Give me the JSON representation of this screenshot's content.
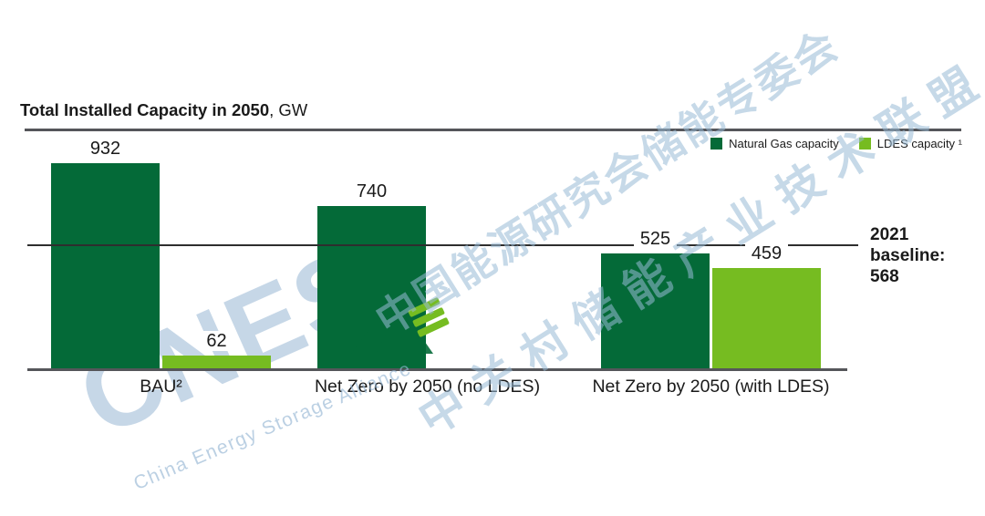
{
  "title": {
    "main": "Total Installed Capacity in 2050",
    "unit": ", GW"
  },
  "legend": {
    "items": [
      {
        "label": "Natural Gas capacity",
        "color": "#046a38"
      },
      {
        "label": "LDES capacity ¹",
        "color": "#76bc21"
      }
    ]
  },
  "baseline_note": "2021\nbaseline:\n568",
  "chart_data": {
    "type": "bar",
    "title": "Total Installed Capacity in 2050, GW",
    "unit": "GW",
    "categories": [
      "BAU²",
      "Net Zero by 2050 (no LDES)",
      "Net Zero by 2050 (with LDES)"
    ],
    "series": [
      {
        "name": "Natural Gas capacity",
        "color": "#046a38",
        "values": [
          932,
          740,
          525
        ]
      },
      {
        "name": "LDES capacity",
        "color": "#76bc21",
        "values": [
          62,
          null,
          459
        ]
      }
    ],
    "baseline": {
      "label": "2021 baseline: 568",
      "value": 568
    },
    "ylim": [
      0,
      1000
    ],
    "grid": false,
    "legend_position": "top-right"
  },
  "watermark": {
    "big_text": "CNES",
    "small_text": "China Energy Storage Alliance",
    "cn_line1": "中国能源研究会储能专委会",
    "cn_line2": "中关村储能产业技术联盟",
    "color": "#9ab8d4"
  }
}
